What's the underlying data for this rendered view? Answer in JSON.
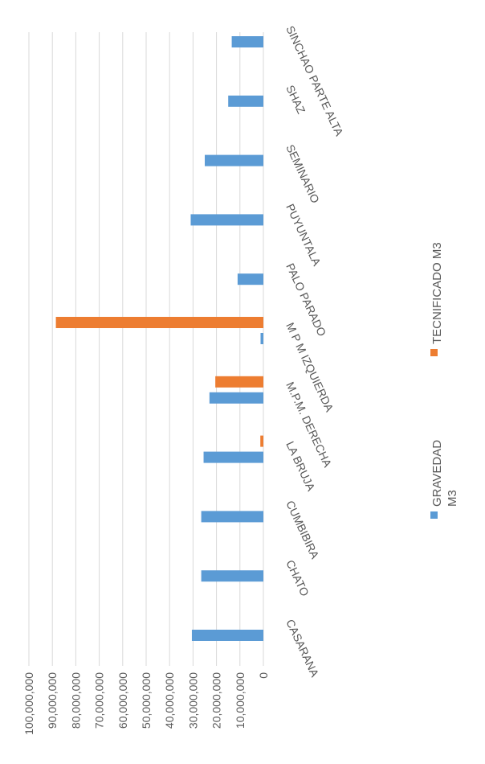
{
  "chart_data": {
    "type": "bar",
    "orientation": "rotated-vertical-bars",
    "categories": [
      "CASARANA",
      "CHATO",
      "CUMBIBIRA",
      "LA BRUJA",
      "M.P.M. DERECHA",
      "M P M IZQUIERDA",
      "PALO PARADO",
      "PUYUNTALA",
      "SEMINARIO",
      "SHAZ",
      "SINCHAO PARTE ALTA"
    ],
    "series": [
      {
        "name": "GRAVEDAD M3",
        "color": "#5b9bd5",
        "values": [
          30500000,
          26500000,
          26500000,
          25500000,
          23000000,
          1200000,
          11000000,
          31000000,
          25000000,
          15000000,
          13500000
        ]
      },
      {
        "name": "TECNIFICADO M3",
        "color": "#ed7d31",
        "values": [
          0,
          0,
          0,
          1300000,
          20500000,
          88500000,
          0,
          0,
          0,
          0,
          0
        ]
      }
    ],
    "y_ticks": [
      "0",
      "10,000,000",
      "20,000,000",
      "30,000,000",
      "40,000,000",
      "50,000,000",
      "60,000,000",
      "70,000,000",
      "80,000,000",
      "90,000,000",
      "100,000,000"
    ],
    "ylim": [
      0,
      100000000
    ],
    "grid": true,
    "legend_position": "bottom"
  }
}
